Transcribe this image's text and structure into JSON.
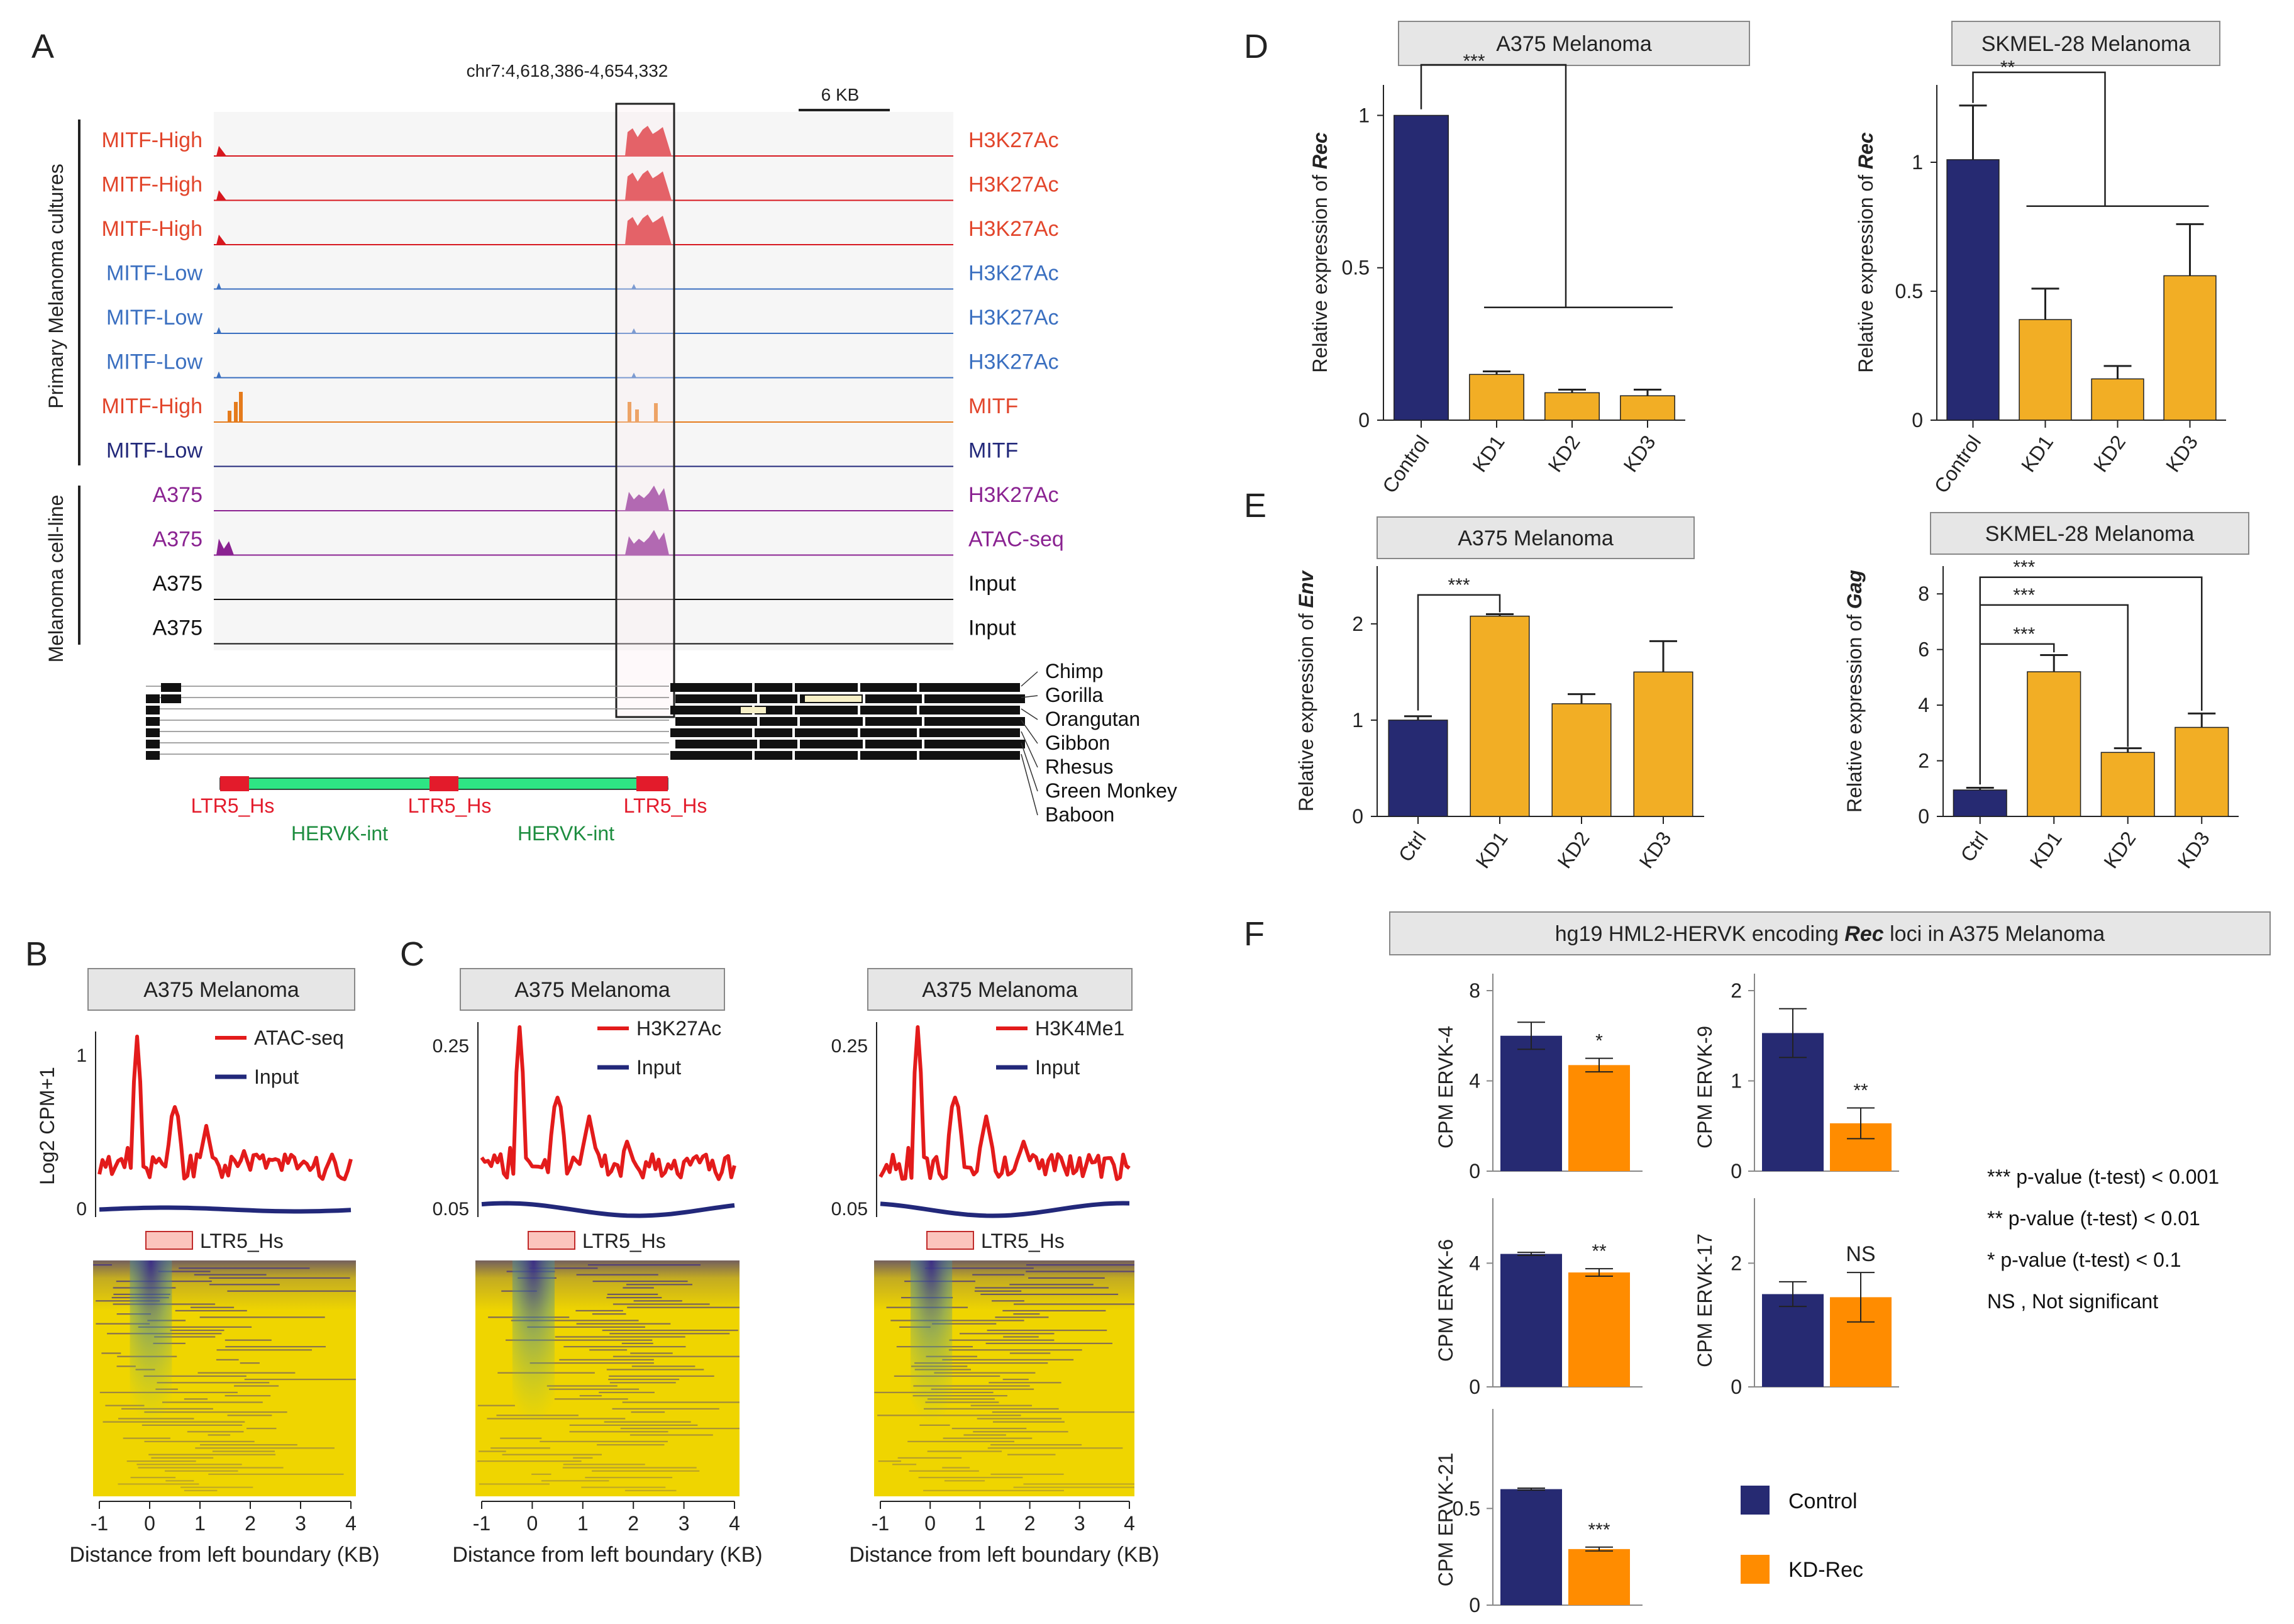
{
  "colors": {
    "navy": "#262a72",
    "amber": "#f2ae25",
    "orange": "#ff8c00",
    "red_label": "#e2452b",
    "red_track": "#d7181f",
    "blue_label": "#3a6fc0",
    "orange_track": "#e57b1c",
    "dark_blue": "#22287a",
    "purple": "#8a2291",
    "gray_box": "#e6e6e6",
    "ltr_red": "#e31b2b",
    "herv_green": "#2ee584",
    "herv_text": "#1d8d3f",
    "heat_yellow": "#efd500",
    "heat_purple": "#3f2d86"
  },
  "panels": {
    "A": {
      "letter": "A",
      "coords": "chr7:4,618,386-4,654,332",
      "scale": "6 KB",
      "side_primary": "Primary Melanoma cultures",
      "side_cell": "Melanoma cell-line",
      "tracks": [
        {
          "left": "MITF-High",
          "right": "H3K27Ac",
          "kind": "red"
        },
        {
          "left": "MITF-High",
          "right": "H3K27Ac",
          "kind": "red"
        },
        {
          "left": "MITF-High",
          "right": "H3K27Ac",
          "kind": "red"
        },
        {
          "left": "MITF-Low",
          "right": "H3K27Ac",
          "kind": "blue"
        },
        {
          "left": "MITF-Low",
          "right": "H3K27Ac",
          "kind": "blue"
        },
        {
          "left": "MITF-Low",
          "right": "H3K27Ac",
          "kind": "blue"
        },
        {
          "left": "MITF-High",
          "right": "MITF",
          "kind": "orange"
        },
        {
          "left": "MITF-Low",
          "right": "MITF",
          "kind": "navy"
        },
        {
          "left": "A375",
          "right": "H3K27Ac",
          "kind": "purple"
        },
        {
          "left": "A375",
          "right": "ATAC-seq",
          "kind": "purple"
        },
        {
          "left": "A375",
          "right": "Input",
          "kind": "black"
        },
        {
          "left": "A375",
          "right": "Input",
          "kind": "black"
        }
      ],
      "species": [
        "Chimp",
        "Gorilla",
        "Orangutan",
        "Gibbon",
        "Rhesus",
        "Green Monkey",
        "Baboon"
      ],
      "ltr": [
        "LTR5_Hs",
        "LTR5_Hs",
        "LTR5_Hs"
      ],
      "herv": [
        "HERVK-int",
        "HERVK-int"
      ]
    },
    "B": {
      "letter": "B",
      "title": "A375 Melanoma",
      "ylabel": "Log2 CPM+1",
      "y_ticks": [
        "1",
        "0"
      ],
      "legend": [
        "ATAC-seq",
        "Input"
      ],
      "ltr_label": "LTR5_Hs",
      "x_ticks": [
        "-1",
        "0",
        "1",
        "2",
        "3",
        "4"
      ],
      "xlabel": "Distance from left boundary (KB)"
    },
    "C": {
      "letter": "C",
      "profiles": [
        {
          "title": "A375 Melanoma",
          "y_ticks": [
            "0.25",
            "0.05"
          ],
          "legend": [
            "H3K27Ac",
            "Input"
          ],
          "ltr_label": "LTR5_Hs",
          "x_ticks": [
            "-1",
            "0",
            "1",
            "2",
            "3",
            "4"
          ],
          "xlabel": "Distance from left boundary (KB)"
        },
        {
          "title": "A375 Melanoma",
          "y_ticks": [
            "0.25",
            "0.05"
          ],
          "legend": [
            "H3K4Me1",
            "Input"
          ],
          "ltr_label": "LTR5_Hs",
          "x_ticks": [
            "-1",
            "0",
            "1",
            "2",
            "3",
            "4"
          ],
          "xlabel": "Distance from left boundary (KB)"
        }
      ]
    },
    "D": {
      "letter": "D"
    },
    "E": {
      "letter": "E"
    },
    "F": {
      "letter": "F",
      "title_pre": "hg19 HML2-HERVK encoding ",
      "title_em": "Rec",
      "title_post": " loci in A375 Melanoma",
      "notes": [
        "*** p-value (t-test) < 0.001",
        "** p-value (t-test) < 0.01",
        "* p-value (t-test) < 0.1",
        "NS , Not significant"
      ],
      "legend": [
        "Control",
        "KD-Rec"
      ]
    }
  },
  "chart_data": [
    {
      "id": "D1",
      "type": "bar",
      "title": "A375 Melanoma",
      "ylabel_pre": "Relative expression of ",
      "ylabel_em": "Rec",
      "categories": [
        "Control",
        "KD1",
        "KD2",
        "KD3"
      ],
      "values": [
        1.0,
        0.15,
        0.09,
        0.08
      ],
      "errors": [
        0.0,
        0.01,
        0.01,
        0.02
      ],
      "ylim": [
        0,
        1.1
      ],
      "yticks": [
        0,
        0.5,
        1
      ],
      "ytick_labels": [
        "0",
        "0.5",
        "1"
      ],
      "sig": [
        "***"
      ]
    },
    {
      "id": "D2",
      "type": "bar",
      "title": "SKMEL-28 Melanoma",
      "ylabel_pre": "Relative expression of ",
      "ylabel_em": "Rec",
      "categories": [
        "Control",
        "KD1",
        "KD2",
        "KD3"
      ],
      "values": [
        1.01,
        0.39,
        0.16,
        0.56
      ],
      "errors": [
        0.21,
        0.12,
        0.05,
        0.2
      ],
      "ylim": [
        0,
        1.3
      ],
      "yticks": [
        0,
        0.5,
        1
      ],
      "ytick_labels": [
        "0",
        "0.5",
        "1"
      ],
      "sig": [
        "**"
      ]
    },
    {
      "id": "E1",
      "type": "bar",
      "title": "A375 Melanoma",
      "ylabel_pre": "Relative expression of ",
      "ylabel_em": "Env",
      "categories": [
        "Ctrl",
        "KD1",
        "KD2",
        "KD3"
      ],
      "values": [
        1.0,
        2.08,
        1.17,
        1.5
      ],
      "errors": [
        0.04,
        0.02,
        0.1,
        0.32
      ],
      "ylim": [
        0,
        2.6
      ],
      "yticks": [
        0,
        1,
        2
      ],
      "ytick_labels": [
        "0",
        "1",
        "2"
      ],
      "sig": [
        "***"
      ]
    },
    {
      "id": "E2",
      "type": "bar",
      "title": "SKMEL-28 Melanoma",
      "ylabel_pre": "Relative expression of ",
      "ylabel_em": "Gag",
      "categories": [
        "Ctrl",
        "KD1",
        "KD2",
        "KD3"
      ],
      "values": [
        0.95,
        5.2,
        2.3,
        3.2
      ],
      "errors": [
        0.08,
        0.6,
        0.15,
        0.5
      ],
      "ylim": [
        0,
        9
      ],
      "yticks": [
        0,
        2,
        4,
        6,
        8
      ],
      "ytick_labels": [
        "0",
        "2",
        "4",
        "6",
        "8"
      ],
      "sig": [
        "***",
        "***",
        "***"
      ]
    },
    {
      "id": "F1",
      "type": "bar",
      "ylabel": "CPM ERVK-4",
      "categories": [
        "Control",
        "KD-Rec"
      ],
      "values": [
        6.0,
        4.7
      ],
      "errors": [
        0.6,
        0.3
      ],
      "ylim": [
        0,
        8
      ],
      "yticks": [
        0,
        4,
        8
      ],
      "ytick_labels": [
        "0",
        "4",
        "8"
      ],
      "sig": "*"
    },
    {
      "id": "F2",
      "type": "bar",
      "ylabel": "CPM ERVK-9",
      "categories": [
        "Control",
        "KD-Rec"
      ],
      "values": [
        1.53,
        0.53
      ],
      "errors": [
        0.27,
        0.17
      ],
      "ylim": [
        0,
        2
      ],
      "yticks": [
        0,
        1,
        2
      ],
      "ytick_labels": [
        "0",
        "1",
        "2"
      ],
      "sig": "**"
    },
    {
      "id": "F3",
      "type": "bar",
      "ylabel": "CPM ERVK-6",
      "categories": [
        "Control",
        "KD-Rec"
      ],
      "values": [
        4.3,
        3.7
      ],
      "errors": [
        0.05,
        0.12
      ],
      "ylim": [
        0,
        6
      ],
      "yticks": [
        0,
        4
      ],
      "ytick_labels": [
        "0",
        "4"
      ],
      "sig": "**"
    },
    {
      "id": "F4",
      "type": "bar",
      "ylabel": "CPM ERVK-17",
      "categories": [
        "Control",
        "KD-Rec"
      ],
      "values": [
        1.5,
        1.45
      ],
      "errors": [
        0.2,
        0.4
      ],
      "ylim": [
        0,
        3
      ],
      "yticks": [
        0,
        2
      ],
      "ytick_labels": [
        "0",
        "2"
      ],
      "sig": "NS"
    },
    {
      "id": "F5",
      "type": "bar",
      "ylabel": "CPM ERVK-21",
      "categories": [
        "Control",
        "KD-Rec"
      ],
      "values": [
        0.6,
        0.29
      ],
      "errors": [
        0.005,
        0.01
      ],
      "ylim": [
        0,
        0.95
      ],
      "yticks": [
        0,
        0.5
      ],
      "ytick_labels": [
        "0",
        "0.5"
      ],
      "sig": "***"
    }
  ]
}
